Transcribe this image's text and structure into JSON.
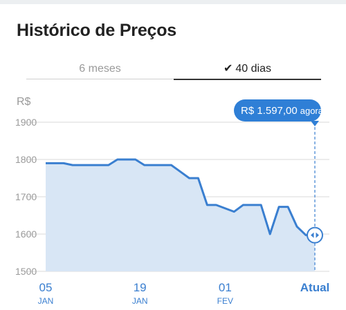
{
  "header": {
    "title": "Histórico de Preços"
  },
  "tabs": [
    {
      "label": "6 meses",
      "active": false
    },
    {
      "label": "40 dias",
      "active": true,
      "icon": "check-icon"
    }
  ],
  "chart_data": {
    "type": "area",
    "currency": "R$",
    "ylabel": "R$",
    "ylim": [
      1500,
      1900
    ],
    "yticks": [
      1900,
      1800,
      1700,
      1600,
      1500
    ],
    "xticks": [
      {
        "day": "05",
        "month": "JAN"
      },
      {
        "day": "19",
        "month": "JAN"
      },
      {
        "day": "01",
        "month": "FEV"
      },
      {
        "day": "Atual",
        "month": ""
      }
    ],
    "series": [
      {
        "x": [
          0,
          2,
          3,
          5,
          7,
          8,
          10,
          11,
          13,
          14,
          16,
          17,
          18,
          19,
          21,
          22,
          23,
          24,
          25,
          26,
          27,
          28,
          29,
          30
        ],
        "values": [
          1790,
          1790,
          1785,
          1785,
          1785,
          1800,
          1800,
          1785,
          1785,
          1785,
          1750,
          1750,
          1678,
          1678,
          1660,
          1678,
          1678,
          1678,
          1600,
          1673,
          1673,
          1620,
          1597,
          1597
        ]
      }
    ],
    "x_tick_positions": [
      0,
      10.5,
      20,
      30
    ],
    "x_max": 30,
    "tooltip": {
      "value": "R$ 1.597,00",
      "suffix": "agora"
    },
    "grid": true,
    "colors": {
      "line": "#3a7fd0",
      "fill": "#d8e6f5",
      "tooltip_bg": "#2f7fd6",
      "grid": "#d9d9d9",
      "axis_text": "#9a9a9a",
      "xtick_text": "#3a7fd0"
    }
  }
}
